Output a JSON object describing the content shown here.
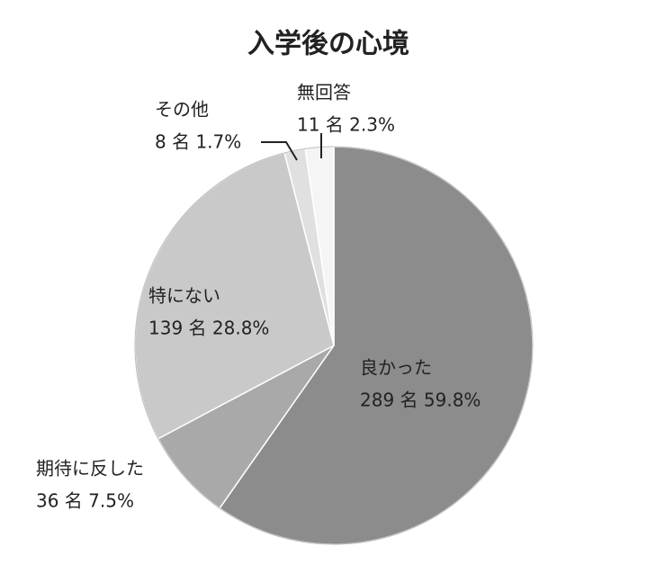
{
  "chart_data": {
    "type": "pie",
    "title": "入学後の心境",
    "categories": [
      "良かった",
      "期待に反した",
      "特にない",
      "その他",
      "無回答"
    ],
    "values": [
      59.8,
      7.5,
      28.8,
      1.7,
      2.3
    ],
    "value_labels": [
      "289 名 59.8%",
      "36 名 7.5%",
      "139 名 28.8%",
      "8 名 1.7%",
      "11 名 2.3%"
    ],
    "colors": [
      "#8c8c8c",
      "#a9a9a9",
      "#c9c9c9",
      "#e0e0e0",
      "#f5f5f5"
    ]
  }
}
